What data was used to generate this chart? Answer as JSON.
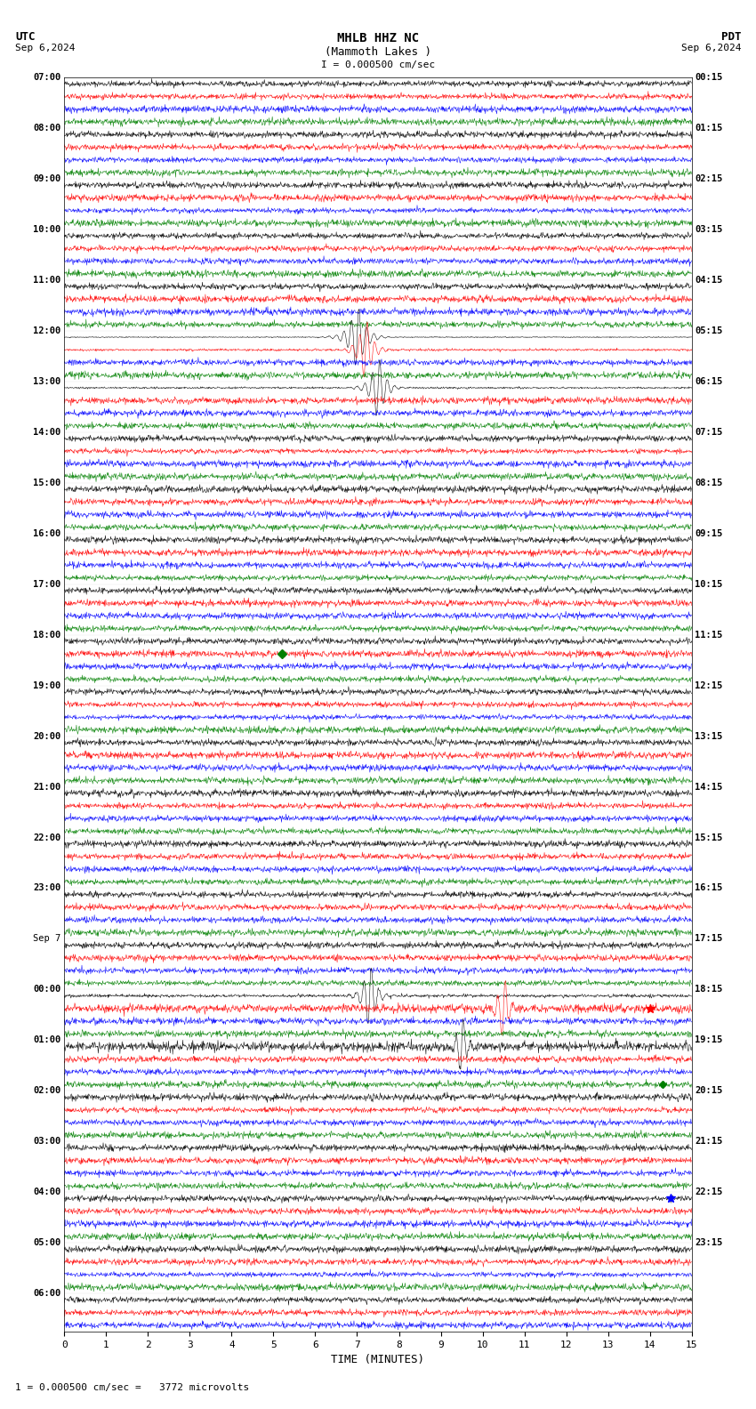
{
  "title_line1": "MHLB HHZ NC",
  "title_line2": "(Mammoth Lakes )",
  "scale_text": "I = 0.000500 cm/sec",
  "footer_text": "1 = 0.000500 cm/sec =   3772 microvolts",
  "utc_label": "UTC",
  "pdt_label": "PDT",
  "date_left": "Sep 6,2024",
  "date_right": "Sep 6,2024",
  "xlabel": "TIME (MINUTES)",
  "bg_color": "#ffffff",
  "trace_colors": [
    "#000000",
    "#ff0000",
    "#0000ff",
    "#008000"
  ],
  "n_rows": 99,
  "event_configs": {
    "20": [
      7.0,
      3.5,
      0.12
    ],
    "21": [
      7.2,
      1.5,
      0.1
    ],
    "24": [
      7.5,
      1.8,
      0.1
    ],
    "72": [
      7.3,
      2.0,
      0.09
    ],
    "73": [
      10.5,
      0.8,
      0.07
    ],
    "76": [
      9.5,
      0.7,
      0.07
    ]
  },
  "utc_hour_labels": [
    "07:00",
    "08:00",
    "09:00",
    "10:00",
    "11:00",
    "12:00",
    "13:00",
    "14:00",
    "15:00",
    "16:00",
    "17:00",
    "18:00",
    "19:00",
    "20:00",
    "21:00",
    "22:00",
    "23:00",
    "Sep 7",
    "00:00",
    "01:00",
    "02:00",
    "03:00",
    "04:00",
    "05:00",
    "06:00"
  ],
  "pdt_hour_labels": [
    "00:15",
    "01:15",
    "02:15",
    "03:15",
    "04:15",
    "05:15",
    "06:15",
    "07:15",
    "08:15",
    "09:15",
    "10:15",
    "11:15",
    "12:15",
    "13:15",
    "14:15",
    "15:15",
    "16:15",
    "17:15",
    "18:15",
    "19:15",
    "20:15",
    "21:15",
    "22:15",
    "23:15"
  ],
  "sep7_row": 68,
  "marker_green1_row": 45,
  "marker_green1_col": 5.2,
  "marker_red1_row": 73,
  "marker_red1_col": 14.0,
  "marker_blue1_row": 88,
  "marker_blue1_col": 14.5,
  "marker_green2_row": 79,
  "marker_green2_col": 14.3
}
